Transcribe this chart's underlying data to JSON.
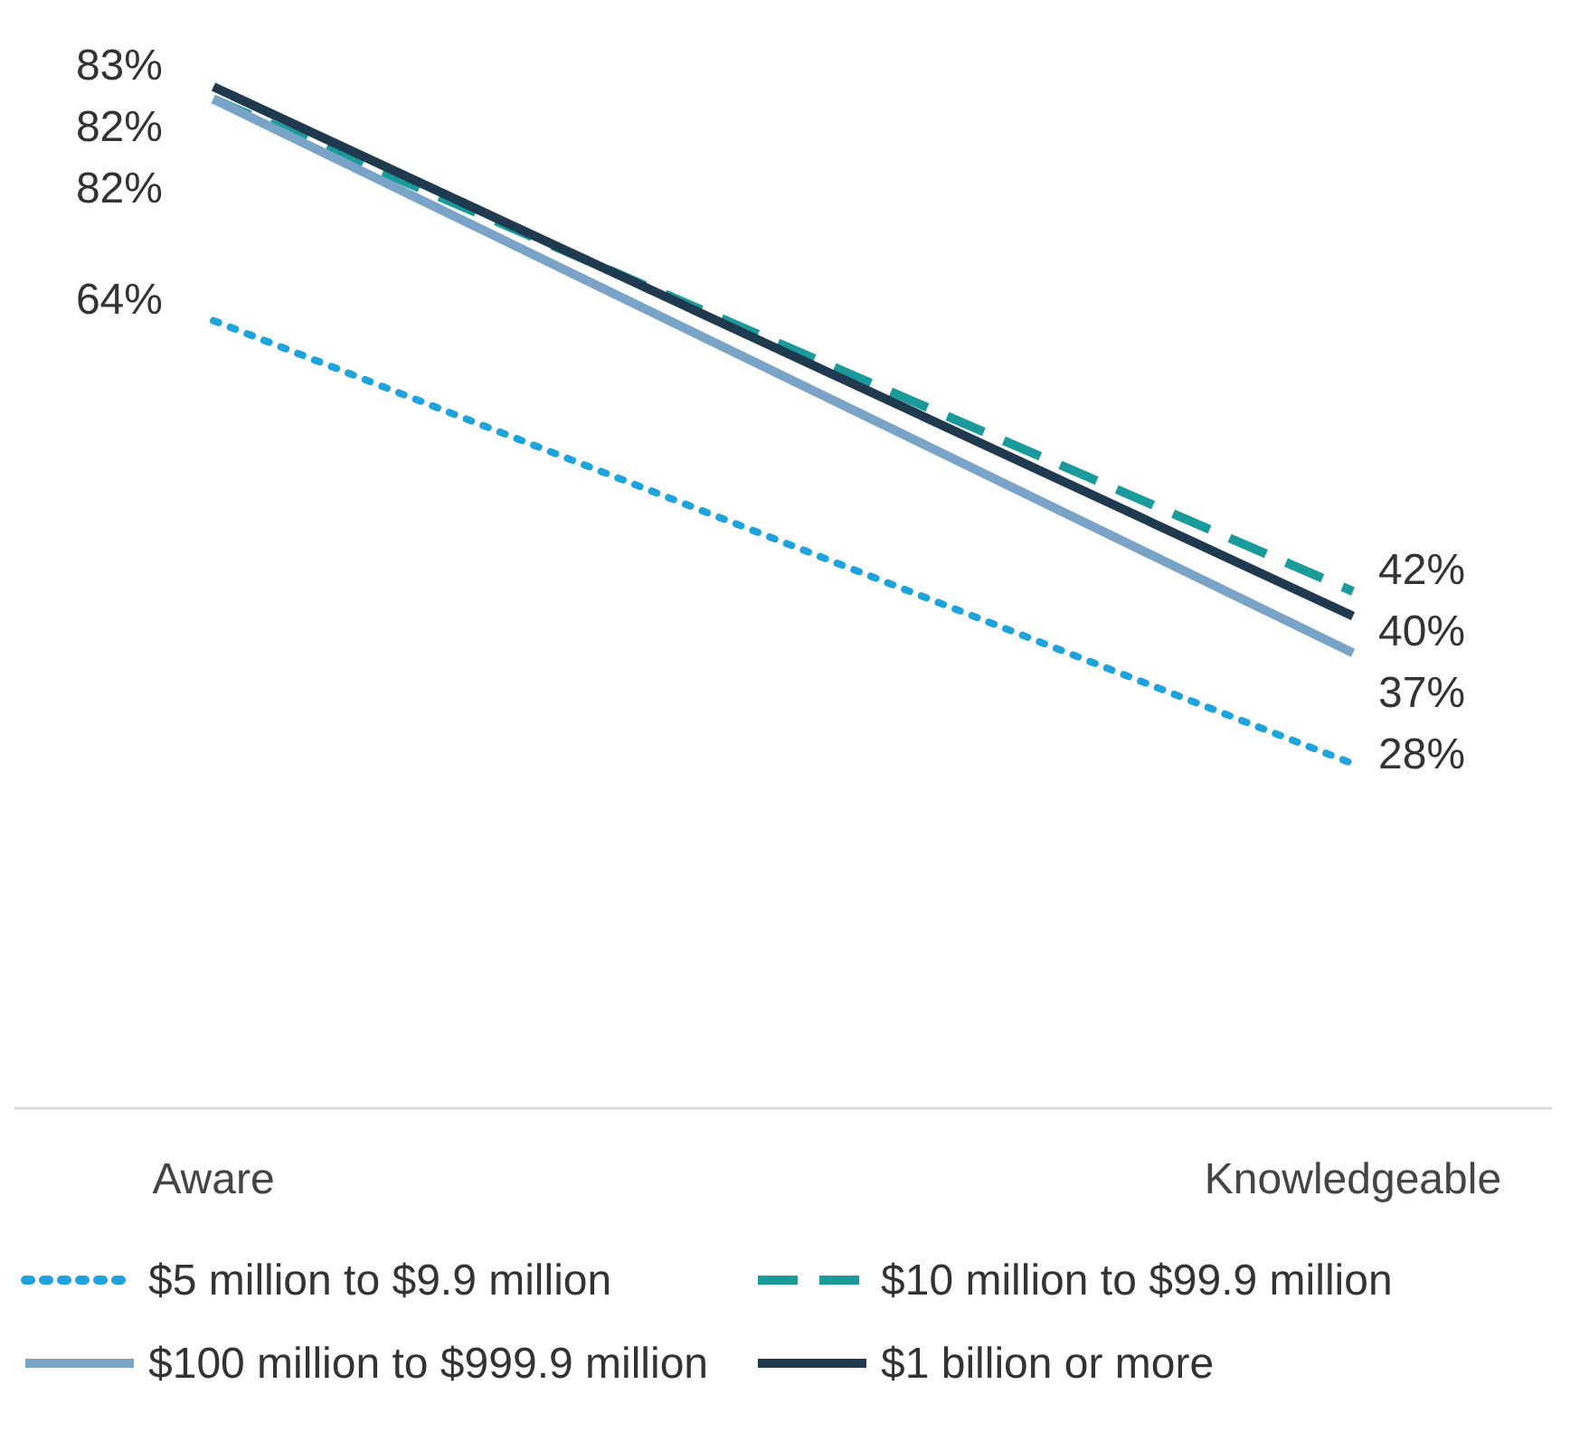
{
  "chart_data": {
    "type": "line",
    "categories": [
      "Aware",
      "Knowledgeable"
    ],
    "series": [
      {
        "name": "$5 million to $9.9 million",
        "color": "#1fa3dc",
        "values": [
          64,
          28
        ],
        "value_labels": [
          "64%",
          "28%"
        ],
        "line_style": "dotted"
      },
      {
        "name": "$10 million to $99.9 million",
        "color": "#1a9a9a",
        "values": [
          82,
          42
        ],
        "value_labels": [
          "82%",
          "42%"
        ],
        "line_style": "dashed"
      },
      {
        "name": "$100 million to $999.9 million",
        "color": "#7aa3c8",
        "values": [
          82,
          37
        ],
        "value_labels": [
          "82%",
          "37%"
        ],
        "line_style": "solid"
      },
      {
        "name": "$1 billion or more",
        "color": "#1f3a4f",
        "values": [
          83,
          40
        ],
        "value_labels": [
          "83%",
          "40%"
        ],
        "line_style": "solid"
      }
    ],
    "tick_labels": "x",
    "legend": "bottom"
  }
}
